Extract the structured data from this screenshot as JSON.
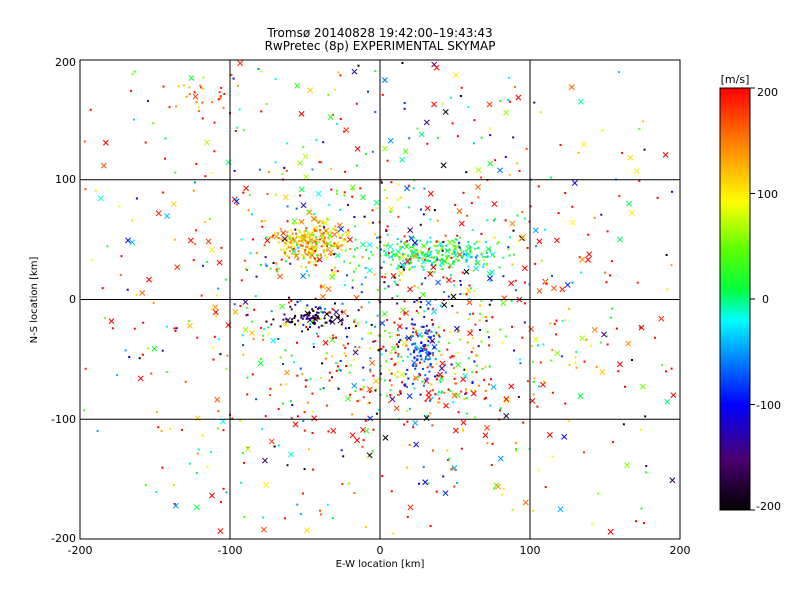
{
  "chart_data": {
    "type": "scatter",
    "title": "Tromsø 20140828 19:42:00–19:43:43",
    "subtitle": "RwPretec (8p) EXPERIMENTAL SKYMAP",
    "xlabel": "E-W location [km]",
    "ylabel": "N-S location [km]",
    "xlim": [
      -200,
      200
    ],
    "ylim": [
      -200,
      200
    ],
    "x_ticks": [
      "-200",
      "-100",
      "0",
      "100",
      "200"
    ],
    "y_ticks": [
      "-200",
      "-100",
      "0",
      "100",
      "200"
    ],
    "grid": true,
    "marker_types": [
      "dot",
      "cross"
    ],
    "colorbar": {
      "label": "[m/s]",
      "range": [
        -200,
        200
      ],
      "ticks": [
        "200",
        "100",
        "0",
        "-100",
        "-200"
      ],
      "colormap": "rainbow-black-to-red"
    },
    "clusters": [
      {
        "x": -45,
        "y": 48,
        "sx": 13,
        "sy": 9,
        "v": 115,
        "vs": 40,
        "density": "high"
      },
      {
        "x": 35,
        "y": 38,
        "sx": 22,
        "sy": 7,
        "v": 10,
        "vs": 35,
        "density": "high"
      },
      {
        "x": 25,
        "y": -55,
        "sx": 45,
        "sy": 28,
        "v": 110,
        "vs": 130,
        "density": "high"
      },
      {
        "x": 28,
        "y": -40,
        "sx": 6,
        "sy": 14,
        "v": -90,
        "vs": 20,
        "density": "medium"
      },
      {
        "x": -45,
        "y": -15,
        "sx": 12,
        "sy": 4,
        "v": -170,
        "vs": 40,
        "density": "medium"
      },
      {
        "x": 10,
        "y": 5,
        "sx": 45,
        "sy": 45,
        "v": -120,
        "vs": 80,
        "density": "medium"
      },
      {
        "x": -115,
        "y": 170,
        "sx": 12,
        "sy": 10,
        "v": 160,
        "vs": 40,
        "density": "low"
      },
      {
        "x": 0,
        "y": 0,
        "sx": 110,
        "sy": 110,
        "v": 100,
        "vs": 160,
        "density": "background"
      }
    ]
  }
}
